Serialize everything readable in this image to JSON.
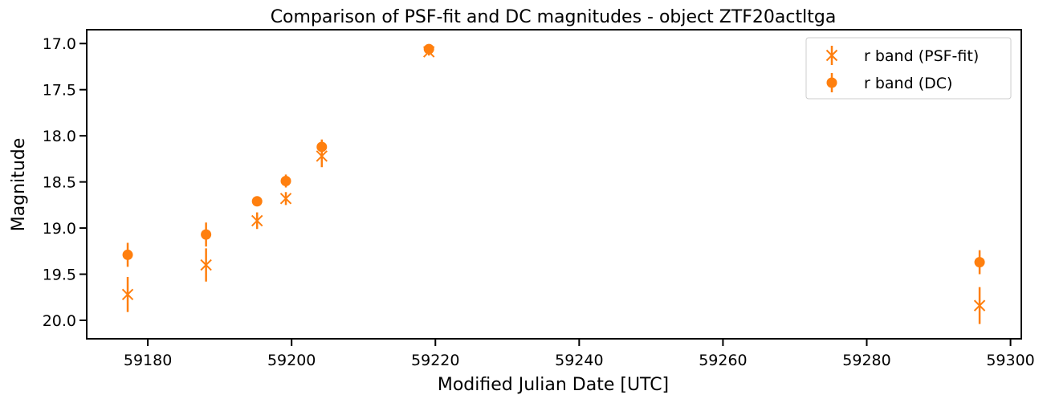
{
  "chart_data": {
    "type": "scatter",
    "title": "Comparison of PSF-fit and DC magnitudes - object ZTF20actltga",
    "xlabel": "Modified Julian Date [UTC]",
    "ylabel": "Magnitude",
    "xlim": [
      59171.5,
      59301.5
    ],
    "ylim": [
      20.2,
      16.85
    ],
    "y_inverted": true,
    "xticks": [
      59180,
      59200,
      59220,
      59240,
      59260,
      59280,
      59300
    ],
    "yticks": [
      17.0,
      17.5,
      18.0,
      18.5,
      19.0,
      19.5,
      20.0
    ],
    "ytick_labels": [
      "17.0",
      "17.5",
      "18.0",
      "18.5",
      "19.0",
      "19.5",
      "20.0"
    ],
    "grid": false,
    "legend_position": "top-right",
    "series": [
      {
        "name": "r band (PSF-fit)",
        "marker": "x",
        "color": "#ff7f0e",
        "points": [
          {
            "x": 59177.2,
            "y": 19.72,
            "err": 0.19
          },
          {
            "x": 59188.1,
            "y": 19.4,
            "err": 0.18
          },
          {
            "x": 59195.2,
            "y": 18.92,
            "err": 0.09
          },
          {
            "x": 59199.2,
            "y": 18.68,
            "err": 0.07
          },
          {
            "x": 59204.2,
            "y": 18.22,
            "err": 0.12
          },
          {
            "x": 59219.1,
            "y": 17.09,
            "err": 0.04
          },
          {
            "x": 59295.7,
            "y": 19.84,
            "err": 0.2
          }
        ]
      },
      {
        "name": "r band (DC)",
        "marker": "o",
        "color": "#ff7f0e",
        "points": [
          {
            "x": 59177.2,
            "y": 19.29,
            "err": 0.13
          },
          {
            "x": 59188.1,
            "y": 19.07,
            "err": 0.13
          },
          {
            "x": 59195.2,
            "y": 18.71,
            "err": 0.05
          },
          {
            "x": 59199.2,
            "y": 18.49,
            "err": 0.07
          },
          {
            "x": 59204.2,
            "y": 18.12,
            "err": 0.08
          },
          {
            "x": 59219.1,
            "y": 17.06,
            "err": 0.03
          },
          {
            "x": 59295.7,
            "y": 19.37,
            "err": 0.13
          }
        ]
      }
    ]
  }
}
